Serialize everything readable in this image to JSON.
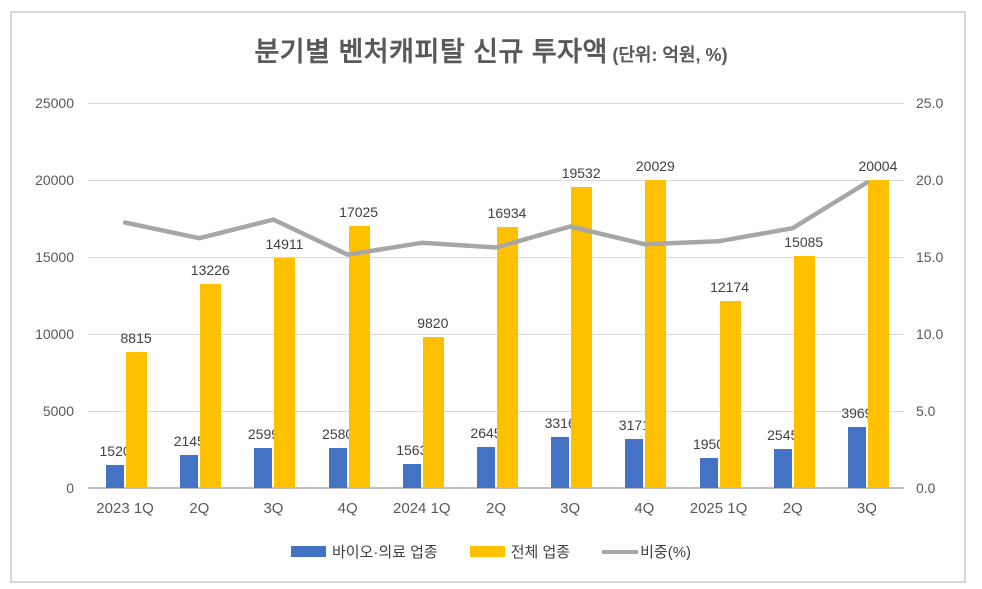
{
  "title": {
    "main": "분기별 벤처캐피탈 신규 투자액",
    "unit": "(단위: 억원, %)"
  },
  "colors": {
    "bio_bar": "#4472c4",
    "total_bar": "#ffc000",
    "ratio_line": "#a6a6a6",
    "gridline": "#d9d9d9",
    "axis_line": "#bfbfbf",
    "axis_text": "#595959",
    "label_text": "#404040"
  },
  "chart_data": {
    "type": "bar",
    "title": "분기별 벤처캐피탈 신규 투자액 (단위: 억원, %)",
    "categories": [
      "2023 1Q",
      "2Q",
      "3Q",
      "4Q",
      "2024 1Q",
      "2Q",
      "3Q",
      "4Q",
      "2025 1Q",
      "2Q",
      "3Q"
    ],
    "series": [
      {
        "name": "바이오·의료 업종",
        "type": "bar",
        "axis": "left",
        "color": "#4472c4",
        "values": [
          1520,
          2145,
          2599,
          2580,
          1563,
          2645,
          3316,
          3171,
          1950,
          2545,
          3969
        ]
      },
      {
        "name": "전체 업종",
        "type": "bar",
        "axis": "left",
        "color": "#ffc000",
        "values": [
          8815,
          13226,
          14911,
          17025,
          9820,
          16934,
          19532,
          20029,
          12174,
          15085,
          20004
        ]
      },
      {
        "name": "비중(%)",
        "type": "line",
        "axis": "right",
        "color": "#a6a6a6",
        "values": [
          17.24,
          16.22,
          17.43,
          15.15,
          15.92,
          15.62,
          16.98,
          15.83,
          16.02,
          16.87,
          19.84
        ]
      }
    ],
    "left_axis": {
      "min": 0,
      "max": 25000,
      "step": 5000,
      "tick_labels": [
        "0",
        "5000",
        "10000",
        "15000",
        "20000",
        "25000"
      ]
    },
    "right_axis": {
      "min": 0,
      "max": 25,
      "step": 5,
      "tick_labels": [
        "0.0",
        "5.0",
        "10.0",
        "15.0",
        "20.0",
        "25.0"
      ]
    },
    "grid": true,
    "legend_position": "bottom",
    "data_labels": true
  }
}
